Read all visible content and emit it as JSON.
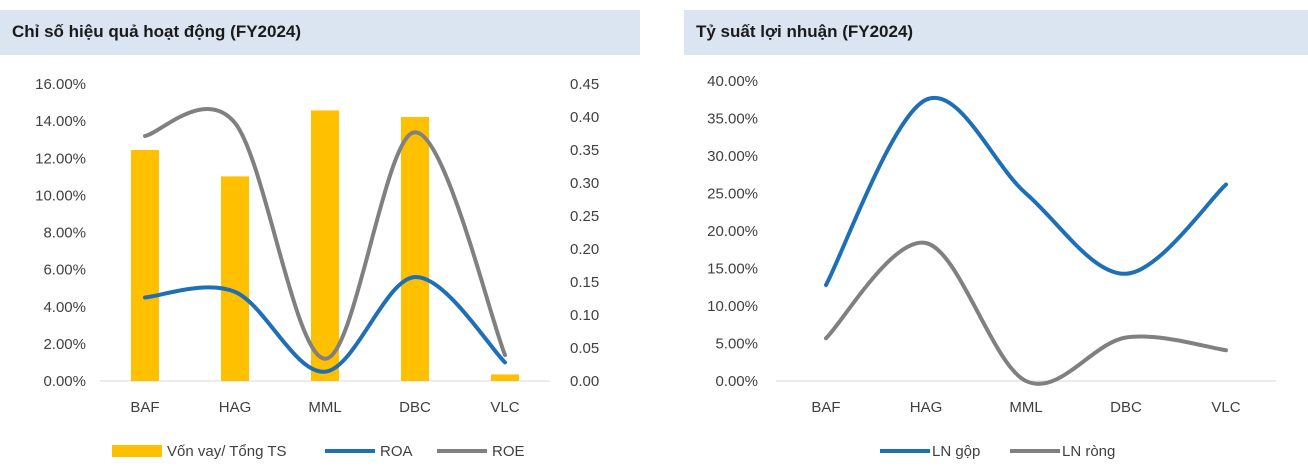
{
  "left_panel": {
    "title": "Chỉ số hiệu quả hoạt động (FY2024)"
  },
  "right_panel": {
    "title": "Tỷ suất lợi nhuận (FY2024)"
  },
  "colors": {
    "bar": "#ffc000",
    "roa": "#1f6fb6",
    "roe": "#808080",
    "ln_gop": "#1f6fb6",
    "ln_rong": "#808080",
    "header_bg": "#dbe5f1"
  },
  "chart_data": [
    {
      "type": "bar",
      "title": "Chỉ số hiệu quả hoạt động (FY2024)",
      "categories": [
        "BAF",
        "HAG",
        "MML",
        "DBC",
        "VLC"
      ],
      "y_left": {
        "min": 0,
        "max": 0.16,
        "step": 0.02,
        "tick_labels": [
          "0.00%",
          "2.00%",
          "4.00%",
          "6.00%",
          "8.00%",
          "10.00%",
          "12.00%",
          "14.00%",
          "16.00%"
        ]
      },
      "y_right": {
        "min": 0,
        "max": 0.45,
        "step": 0.05,
        "tick_labels": [
          "0.00",
          "0.05",
          "0.10",
          "0.15",
          "0.20",
          "0.25",
          "0.30",
          "0.35",
          "0.40",
          "0.45"
        ]
      },
      "series": [
        {
          "name": "Vốn vay/ Tổng TS",
          "type": "bar",
          "axis": "right",
          "values": [
            0.35,
            0.31,
            0.41,
            0.4,
            0.01
          ]
        },
        {
          "name": "ROA",
          "type": "line",
          "axis": "left",
          "values": [
            0.045,
            0.048,
            0.005,
            0.056,
            0.01
          ]
        },
        {
          "name": "ROE",
          "type": "line",
          "axis": "left",
          "values": [
            0.132,
            0.139,
            0.012,
            0.134,
            0.014
          ]
        }
      ],
      "legend": "bottom",
      "grid": false
    },
    {
      "type": "line",
      "title": "Tỷ suất lợi nhuận (FY2024)",
      "categories": [
        "BAF",
        "HAG",
        "MML",
        "DBC",
        "VLC"
      ],
      "y": {
        "min": 0,
        "max": 0.4,
        "step": 0.05,
        "tick_labels": [
          "0.00%",
          "5.00%",
          "10.00%",
          "15.00%",
          "20.00%",
          "25.00%",
          "30.00%",
          "35.00%",
          "40.00%"
        ]
      },
      "series": [
        {
          "name": "LN gộp",
          "values": [
            0.128,
            0.375,
            0.25,
            0.143,
            0.262
          ]
        },
        {
          "name": "LN ròng",
          "values": [
            0.057,
            0.184,
            0.0,
            0.058,
            0.041
          ]
        }
      ],
      "legend": "bottom",
      "grid": false
    }
  ]
}
